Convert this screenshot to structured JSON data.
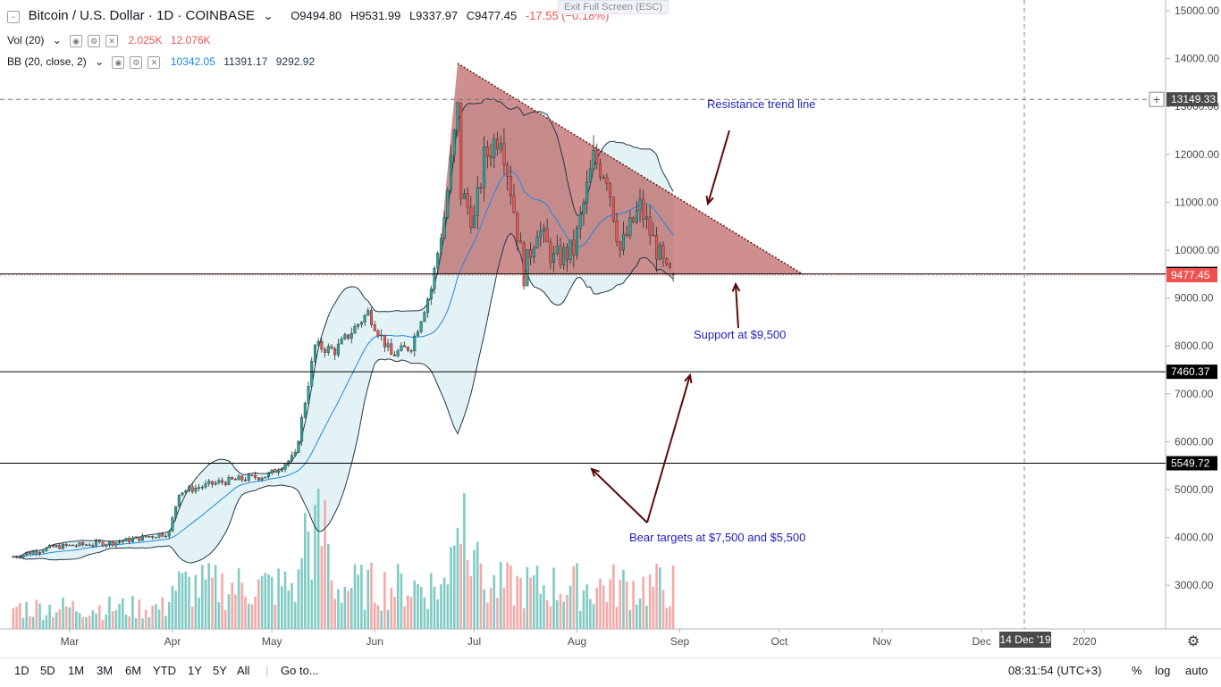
{
  "header": {
    "collapse_icon": "minus-square-icon",
    "symbol": "Bitcoin / U.S. Dollar · 1D · COINBASE",
    "open": "O9494.80",
    "high": "H9531.99",
    "low": "L9337.97",
    "close": "C9477.45",
    "change": "-17.55 (−0.18%)",
    "exit_fullscreen": "Exit Full Screen (ESC)"
  },
  "vol_legend": {
    "name": "Vol (20)",
    "v1": "2.025K",
    "v2": "12.076K"
  },
  "bb_legend": {
    "name": "BB (20, close, 2)",
    "v1": "10342.05",
    "v2": "11391.17",
    "v3": "9292.92"
  },
  "colors": {
    "up": "#26a69a",
    "down": "#ef5350",
    "bb_line": "#21384d",
    "bb_fill": "#e3f2f4",
    "triangle_fill": "#b75a59",
    "annot_text": "#1e1ebe",
    "arrow": "#5c0b0b",
    "axis_text": "#4a4a4a"
  },
  "annotations": {
    "resistance": "Resistance trend line",
    "support": "Support at $9,500",
    "bear": "Bear targets at $7,500 and $5,500"
  },
  "price_labels": {
    "l13149": "13149.33",
    "l9503": "9503.25",
    "l9477": "9477.45",
    "l7460": "7460.37",
    "l5549": "5549.72"
  },
  "time_axis_cursor": "14 Dec '19",
  "bottom_bar": {
    "ranges": [
      "1D",
      "5D",
      "1M",
      "3M",
      "6M",
      "YTD",
      "1Y",
      "5Y",
      "All"
    ],
    "goto": "Go to...",
    "clock": "08:31:54 (UTC+3)",
    "percent": "%",
    "log": "log",
    "auto": "auto"
  },
  "chart_data": {
    "type": "candlestick",
    "title": "Bitcoin / U.S. Dollar · 1D · COINBASE",
    "y_ticks": [
      15000,
      14000,
      13000,
      12000,
      11000,
      10000,
      9000,
      8000,
      7000,
      6000,
      5000,
      4000,
      3000
    ],
    "ylim": [
      2000,
      15300
    ],
    "x_ticks": [
      "Mar",
      "Apr",
      "May",
      "Jun",
      "Jul",
      "Aug",
      "Sep",
      "Oct",
      "Nov",
      "Dec",
      "2020"
    ],
    "horizontal_levels": [
      13149.33,
      9503.25,
      7460.37,
      5549.72
    ],
    "close_key_points": [
      {
        "date": "2019-02-12",
        "close": 3600
      },
      {
        "date": "2019-02-24",
        "close": 3800
      },
      {
        "date": "2019-03-15",
        "close": 3900
      },
      {
        "date": "2019-03-31",
        "close": 4100
      },
      {
        "date": "2019-04-03",
        "close": 4950
      },
      {
        "date": "2019-04-15",
        "close": 5150
      },
      {
        "date": "2019-04-30",
        "close": 5300
      },
      {
        "date": "2019-05-08",
        "close": 5700
      },
      {
        "date": "2019-05-14",
        "close": 8000
      },
      {
        "date": "2019-05-20",
        "close": 7900
      },
      {
        "date": "2019-05-30",
        "close": 8700
      },
      {
        "date": "2019-06-06",
        "close": 7800
      },
      {
        "date": "2019-06-12",
        "close": 8000
      },
      {
        "date": "2019-06-18",
        "close": 9200
      },
      {
        "date": "2019-06-22",
        "close": 10700
      },
      {
        "date": "2019-06-26",
        "close": 12900
      },
      {
        "date": "2019-06-27",
        "close": 11200
      },
      {
        "date": "2019-07-01",
        "close": 10600
      },
      {
        "date": "2019-07-04",
        "close": 11900
      },
      {
        "date": "2019-07-09",
        "close": 12500
      },
      {
        "date": "2019-07-12",
        "close": 11300
      },
      {
        "date": "2019-07-16",
        "close": 9500
      },
      {
        "date": "2019-07-20",
        "close": 10500
      },
      {
        "date": "2019-07-25",
        "close": 9800
      },
      {
        "date": "2019-07-31",
        "close": 10000
      },
      {
        "date": "2019-08-06",
        "close": 11900
      },
      {
        "date": "2019-08-10",
        "close": 11600
      },
      {
        "date": "2019-08-14",
        "close": 10000
      },
      {
        "date": "2019-08-20",
        "close": 10900
      },
      {
        "date": "2019-08-24",
        "close": 10200
      },
      {
        "date": "2019-08-28",
        "close": 9500
      },
      {
        "date": "2019-08-30",
        "close": 9477
      }
    ],
    "volume_note": "volume bars shown at bottom (Vol 20)",
    "descending_triangle": {
      "apex_high": {
        "date": "2019-06-26",
        "price": 13900
      },
      "resistance_end": {
        "date": "2019-10-08",
        "price": 9500
      },
      "support": 9500
    }
  }
}
